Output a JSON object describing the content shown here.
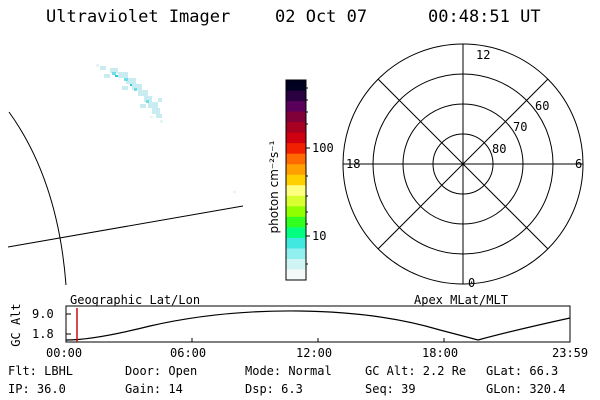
{
  "header": {
    "instrument": "Ultraviolet Imager",
    "date": "02 Oct 07",
    "time": "00:48:51 UT"
  },
  "colorbar": {
    "label": "photon cm⁻²s⁻¹",
    "ticks": [
      "100",
      "10"
    ],
    "colors": [
      "#000020",
      "#2a0040",
      "#5a005a",
      "#80003a",
      "#a80020",
      "#d00010",
      "#f02000",
      "#ff6a00",
      "#ffa000",
      "#ffd000",
      "#ffff80",
      "#d8ff30",
      "#90ff00",
      "#30ff20",
      "#00ff80",
      "#40e8e0",
      "#90f0f0",
      "#d0f4f4",
      "#f4fafa"
    ]
  },
  "polar": {
    "mlt_labels": {
      "top": "12",
      "left": "18",
      "right": "6",
      "bottom": "0"
    },
    "lat_labels": [
      "60",
      "70",
      "80"
    ]
  },
  "plot": {
    "left_label": "Geographic Lat/Lon",
    "right_label": "Apex MLat/MLT",
    "ylabel": "GC Alt",
    "yticks": [
      "9.0",
      "1.8"
    ],
    "xticks": [
      "00:00",
      "06:00",
      "12:00",
      "18:00",
      "23:59"
    ]
  },
  "info": {
    "flt": "Flt: LBHL",
    "ip": "IP: 36.0",
    "door": "Door: Open",
    "gain": "Gain: 14",
    "mode": "Mode: Normal",
    "dsp": "Dsp:     6.3",
    "gcalt": "GC Alt: 2.2 Re",
    "seq": "Seq: 39",
    "glat": "GLat:  66.3",
    "glon": "GLon: 320.4"
  }
}
